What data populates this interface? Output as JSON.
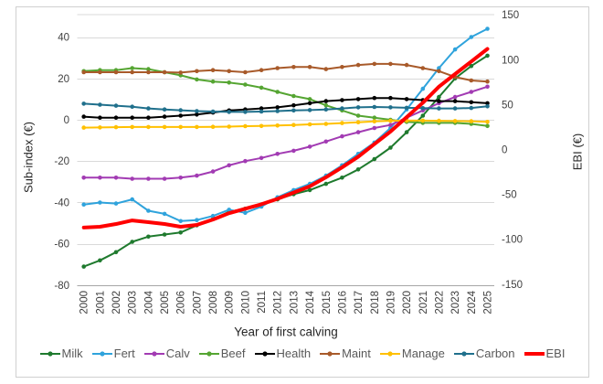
{
  "figure": {
    "background": "#FFFFFF",
    "border_color": "#D0D0D0"
  },
  "colors": {
    "grid": "#D9D9D9",
    "axis_line": "#A6A6A6",
    "tick_text": "#404040",
    "legend_text": "#595959"
  },
  "chart_data": {
    "type": "line",
    "title": "",
    "xlabel": "Year of first calving",
    "ylabel_left": "Sub-index (€)",
    "ylabel_right": "EBI (€)",
    "grid": true,
    "legend_position": "bottom",
    "left_axis": {
      "min": -80,
      "max": 50,
      "ticks": [
        40,
        20,
        0,
        -20,
        -40,
        -60,
        -80
      ]
    },
    "right_axis": {
      "min": -150,
      "max": 150,
      "ticks": [
        150,
        100,
        50,
        0,
        -50,
        -100,
        -150
      ]
    },
    "x": [
      2000,
      2001,
      2002,
      2003,
      2004,
      2005,
      2006,
      2007,
      2008,
      2009,
      2010,
      2011,
      2012,
      2013,
      2014,
      2015,
      2016,
      2017,
      2018,
      2019,
      2020,
      2021,
      2022,
      2023,
      2024,
      2025
    ],
    "series": [
      {
        "name": "Milk",
        "color": "#1F7A2E",
        "axis": "left",
        "thick": false,
        "values": [
          -71,
          -68,
          -64,
          -59,
          -56.5,
          -55.5,
          -54.5,
          -51,
          -48,
          -44.5,
          -43,
          -41,
          -38.5,
          -36,
          -34,
          -31,
          -28,
          -24,
          -19,
          -13.5,
          -6,
          2,
          11,
          20,
          26,
          31
        ]
      },
      {
        "name": "Fert",
        "color": "#2FA3DC",
        "axis": "left",
        "thick": false,
        "values": [
          -41,
          -40,
          -40.5,
          -38.5,
          -44,
          -45.5,
          -49,
          -48.5,
          -46.5,
          -43.5,
          -45,
          -42,
          -37.5,
          -34,
          -31,
          -27,
          -22,
          -16.5,
          -11,
          -4,
          5,
          15,
          25,
          34,
          40,
          44
        ]
      },
      {
        "name": "Calv",
        "color": "#A23BB3",
        "axis": "left",
        "thick": false,
        "values": [
          -28,
          -28,
          -28,
          -28.5,
          -28.5,
          -28.5,
          -28,
          -27,
          -25,
          -22,
          -20,
          -18.5,
          -16.5,
          -15,
          -13,
          -10.5,
          -8,
          -6,
          -4,
          -2.5,
          1,
          4.5,
          8,
          11,
          13.5,
          16
        ]
      },
      {
        "name": "Beef",
        "color": "#55A532",
        "axis": "left",
        "thick": false,
        "values": [
          23.5,
          24,
          24,
          25,
          24.5,
          23,
          21.5,
          19.5,
          18.5,
          18,
          17,
          15.5,
          13.5,
          11.5,
          10,
          7,
          4.5,
          2,
          1,
          0,
          -1,
          -1.5,
          -1.5,
          -1.5,
          -2,
          -3
        ]
      },
      {
        "name": "Health",
        "color": "#000000",
        "axis": "left",
        "thick": false,
        "values": [
          1.5,
          1,
          1,
          1,
          1,
          1.5,
          2,
          2.5,
          3.5,
          4.5,
          5,
          5.5,
          6,
          7,
          8,
          9,
          9.5,
          10,
          10.5,
          10.5,
          10,
          9.5,
          9,
          9,
          8.5,
          8
        ]
      },
      {
        "name": "Maint",
        "color": "#A85A2A",
        "axis": "left",
        "thick": false,
        "values": [
          23,
          23,
          23,
          23,
          23,
          23,
          22.8,
          23.5,
          24,
          23.5,
          23,
          24,
          25,
          25.5,
          25.5,
          24.5,
          25.5,
          26.5,
          27,
          27,
          26.5,
          25,
          23.5,
          20.7,
          19,
          18.5
        ]
      },
      {
        "name": "Manage",
        "color": "#FFC000",
        "axis": "left",
        "thick": false,
        "values": [
          -3.8,
          -3.7,
          -3.6,
          -3.5,
          -3.5,
          -3.5,
          -3.5,
          -3.5,
          -3.4,
          -3.3,
          -3.1,
          -3,
          -2.8,
          -2.5,
          -2.2,
          -2,
          -1.6,
          -1.2,
          -0.8,
          -0.5,
          -0.4,
          -0.4,
          -0.5,
          -0.6,
          -0.7,
          -1
        ]
      },
      {
        "name": "Carbon",
        "color": "#20708C",
        "axis": "left",
        "thick": false,
        "values": [
          7.8,
          7.3,
          6.8,
          6.3,
          5.5,
          5,
          4.6,
          4.2,
          4,
          3.8,
          3.8,
          4,
          4.2,
          4.5,
          4.7,
          5,
          5.5,
          6,
          6.2,
          6,
          5.8,
          5.6,
          5.5,
          5.5,
          5.7,
          6.5
        ]
      },
      {
        "name": "EBI",
        "color": "#FF0000",
        "axis": "right",
        "thick": true,
        "values": [
          -87,
          -86,
          -83,
          -79,
          -81,
          -83,
          -86,
          -84,
          -78,
          -71,
          -66,
          -61,
          -55,
          -48,
          -41,
          -31,
          -20,
          -8,
          6,
          20,
          36,
          52,
          70,
          84,
          98,
          112
        ]
      }
    ]
  }
}
